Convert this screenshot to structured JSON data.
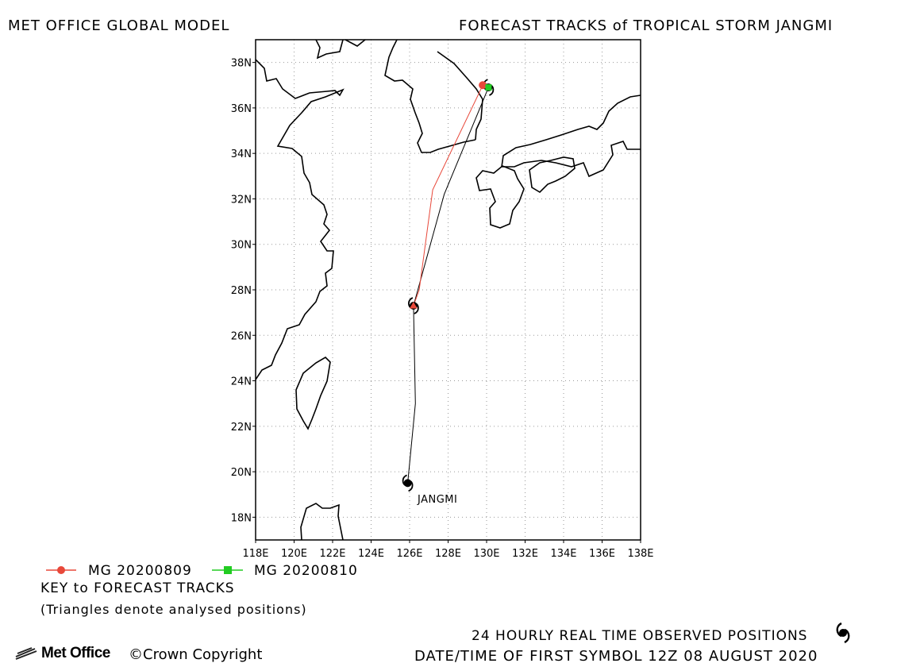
{
  "header": {
    "left_title": "MET OFFICE GLOBAL MODEL",
    "right_title": "FORECAST TRACKS of TROPICAL STORM JANGMI"
  },
  "map": {
    "lat_labels": [
      "38N",
      "36N",
      "34N",
      "32N",
      "30N",
      "28N",
      "26N",
      "24N",
      "22N",
      "20N",
      "18N"
    ],
    "lon_labels": [
      "118E",
      "120E",
      "122E",
      "124E",
      "126E",
      "128E",
      "130E",
      "132E",
      "134E",
      "136E",
      "138E"
    ],
    "lon_range": [
      118,
      138
    ],
    "lat_range": [
      17,
      39
    ],
    "grid": true,
    "storm_label": "JANGMI",
    "colors": {
      "forecast_0809": "#e8483a",
      "forecast_0810": "#22cc22",
      "observed": "#000000",
      "coast": "#000000",
      "grid": "#9a9a9a"
    }
  },
  "tracks": {
    "observed": [
      [
        125.9,
        19.5
      ],
      [
        126.3,
        23.0
      ],
      [
        126.2,
        27.3
      ],
      [
        127.8,
        32.2
      ],
      [
        130.1,
        36.9
      ]
    ],
    "forecast_0809": [
      [
        126.2,
        27.3
      ],
      [
        126.5,
        28.0
      ],
      [
        127.2,
        32.4
      ],
      [
        129.8,
        37.0
      ]
    ],
    "forecast_0810": [
      [
        130.1,
        36.9
      ]
    ]
  },
  "legend": {
    "item1": "MG 20200809",
    "item2": "MG 20200810",
    "key_title": "KEY to FORECAST TRACKS",
    "key_note": "(Triangles denote analysed positions)"
  },
  "footer": {
    "observed_note": "24 HOURLY REAL TIME OBSERVED POSITIONS",
    "datetime": "DATE/TIME OF FIRST SYMBOL 12Z 08 AUGUST 2020",
    "logo_text": "Met Office",
    "copyright": "©Crown Copyright"
  }
}
